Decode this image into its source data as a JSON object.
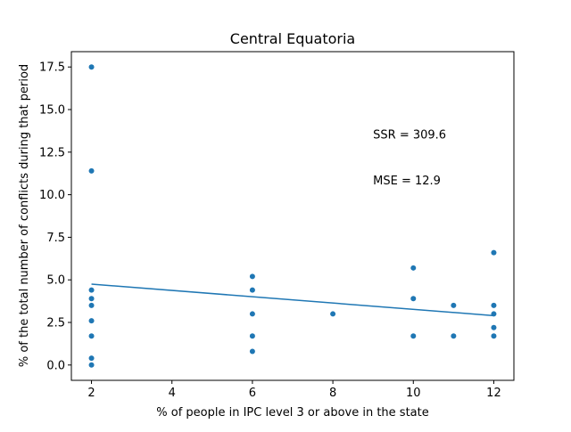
{
  "chart_data": {
    "type": "scatter",
    "title": "Central Equatoria",
    "xlabel": "% of people in IPC level 3 or above in the state",
    "ylabel": "% of the total number of conflicts during that period",
    "xlim": [
      1.5,
      12.5
    ],
    "ylim": [
      -0.9,
      18.4
    ],
    "xticks": [
      2,
      4,
      6,
      8,
      10,
      12
    ],
    "xtick_labels": [
      "2",
      "4",
      "6",
      "8",
      "10",
      "12"
    ],
    "yticks": [
      0.0,
      2.5,
      5.0,
      7.5,
      10.0,
      12.5,
      15.0,
      17.5
    ],
    "ytick_labels": [
      "0.0",
      "2.5",
      "5.0",
      "7.5",
      "10.0",
      "12.5",
      "15.0",
      "17.5"
    ],
    "grid": false,
    "colors": {
      "points": "#1f77b4",
      "fit_line": "#1f77b4"
    },
    "points": [
      {
        "x": 2,
        "y": 17.5
      },
      {
        "x": 2,
        "y": 11.4
      },
      {
        "x": 2,
        "y": 4.4
      },
      {
        "x": 2,
        "y": 3.9
      },
      {
        "x": 2,
        "y": 3.5
      },
      {
        "x": 2,
        "y": 2.6
      },
      {
        "x": 2,
        "y": 1.7
      },
      {
        "x": 2,
        "y": 0.4
      },
      {
        "x": 2,
        "y": 0.0
      },
      {
        "x": 6,
        "y": 5.2
      },
      {
        "x": 6,
        "y": 4.4
      },
      {
        "x": 6,
        "y": 3.0
      },
      {
        "x": 6,
        "y": 1.7
      },
      {
        "x": 6,
        "y": 0.8
      },
      {
        "x": 8,
        "y": 3.0
      },
      {
        "x": 10,
        "y": 5.7
      },
      {
        "x": 10,
        "y": 3.9
      },
      {
        "x": 10,
        "y": 1.7
      },
      {
        "x": 11,
        "y": 3.5
      },
      {
        "x": 11,
        "y": 1.7
      },
      {
        "x": 12,
        "y": 6.6
      },
      {
        "x": 12,
        "y": 3.5
      },
      {
        "x": 12,
        "y": 3.0
      },
      {
        "x": 12,
        "y": 2.2
      },
      {
        "x": 12,
        "y": 1.7
      }
    ],
    "fit_line": {
      "x": [
        2,
        12
      ],
      "y": [
        4.75,
        2.9
      ]
    },
    "annotations": [
      {
        "text": "SSR = 309.6",
        "x": 9.0,
        "y": 13.3
      },
      {
        "text": "MSE = 12.9",
        "x": 9.0,
        "y": 10.6
      }
    ]
  }
}
